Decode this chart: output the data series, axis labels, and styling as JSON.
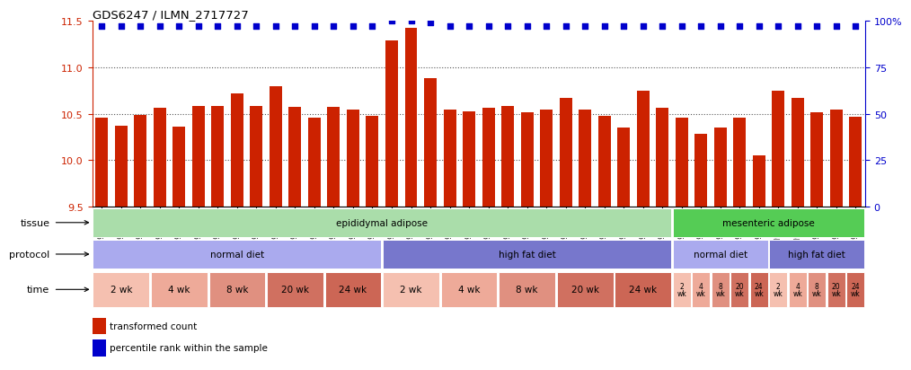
{
  "title": "GDS6247 / ILMN_2717727",
  "samples": [
    "GSM971546",
    "GSM971547",
    "GSM971548",
    "GSM971549",
    "GSM971550",
    "GSM971551",
    "GSM971552",
    "GSM971553",
    "GSM971554",
    "GSM971555",
    "GSM971556",
    "GSM971557",
    "GSM971558",
    "GSM971559",
    "GSM971560",
    "GSM971561",
    "GSM971562",
    "GSM971563",
    "GSM971564",
    "GSM971565",
    "GSM971566",
    "GSM971567",
    "GSM971568",
    "GSM971569",
    "GSM971570",
    "GSM971571",
    "GSM971572",
    "GSM971573",
    "GSM971574",
    "GSM971575",
    "GSM971576",
    "GSM971577",
    "GSM971578",
    "GSM971579",
    "GSM971580",
    "GSM971581",
    "GSM971582",
    "GSM971583",
    "GSM971584",
    "GSM971585"
  ],
  "bar_values": [
    10.46,
    10.37,
    10.49,
    10.56,
    10.36,
    10.58,
    10.58,
    10.72,
    10.58,
    10.8,
    10.57,
    10.46,
    10.57,
    10.55,
    10.48,
    11.29,
    11.42,
    10.88,
    10.55,
    10.53,
    10.56,
    10.58,
    10.52,
    10.55,
    10.67,
    10.55,
    10.48,
    10.35,
    10.75,
    10.56,
    10.46,
    10.28,
    10.35,
    10.46,
    10.05,
    10.75,
    10.67,
    10.52,
    10.55,
    10.47
  ],
  "percentile_values": [
    97,
    97,
    97,
    97,
    97,
    97,
    97,
    97,
    97,
    97,
    97,
    97,
    97,
    97,
    97,
    100,
    100,
    99,
    97,
    97,
    97,
    97,
    97,
    97,
    97,
    97,
    97,
    97,
    97,
    97,
    97,
    97,
    97,
    97,
    97,
    97,
    97,
    97,
    97,
    97
  ],
  "ylim_left": [
    9.5,
    11.5
  ],
  "ylim_right": [
    0,
    100
  ],
  "bar_color": "#cc2200",
  "dot_color": "#0000cc",
  "bg_color": "#ffffff",
  "left_yticks": [
    9.5,
    10.0,
    10.5,
    11.0,
    11.5
  ],
  "right_yticks": [
    0,
    25,
    50,
    75,
    100
  ],
  "right_yticklabels": [
    "0",
    "25",
    "50",
    "75",
    "100%"
  ],
  "tissue_groups": [
    {
      "label": "epididymal adipose",
      "start": 0,
      "end": 30,
      "color": "#aaddaa"
    },
    {
      "label": "mesenteric adipose",
      "start": 30,
      "end": 40,
      "color": "#55cc55"
    }
  ],
  "protocol_groups": [
    {
      "label": "normal diet",
      "start": 0,
      "end": 15,
      "color": "#aaaaee"
    },
    {
      "label": "high fat diet",
      "start": 15,
      "end": 30,
      "color": "#7777cc"
    },
    {
      "label": "normal diet",
      "start": 30,
      "end": 35,
      "color": "#aaaaee"
    },
    {
      "label": "high fat diet",
      "start": 35,
      "end": 40,
      "color": "#7777cc"
    }
  ],
  "time_groups": [
    {
      "label": "2 wk",
      "start": 0,
      "end": 3,
      "color": "#f5c0b0"
    },
    {
      "label": "4 wk",
      "start": 3,
      "end": 6,
      "color": "#eeaa99"
    },
    {
      "label": "8 wk",
      "start": 6,
      "end": 9,
      "color": "#e09080"
    },
    {
      "label": "20 wk",
      "start": 9,
      "end": 12,
      "color": "#d07060"
    },
    {
      "label": "24 wk",
      "start": 12,
      "end": 15,
      "color": "#cc6655"
    },
    {
      "label": "2 wk",
      "start": 15,
      "end": 18,
      "color": "#f5c0b0"
    },
    {
      "label": "4 wk",
      "start": 18,
      "end": 21,
      "color": "#eeaa99"
    },
    {
      "label": "8 wk",
      "start": 21,
      "end": 24,
      "color": "#e09080"
    },
    {
      "label": "20 wk",
      "start": 24,
      "end": 27,
      "color": "#d07060"
    },
    {
      "label": "24 wk",
      "start": 27,
      "end": 30,
      "color": "#cc6655"
    },
    {
      "label": "2\nwk",
      "start": 30,
      "end": 31,
      "color": "#f5c0b0"
    },
    {
      "label": "4\nwk",
      "start": 31,
      "end": 32,
      "color": "#eeaa99"
    },
    {
      "label": "8\nwk",
      "start": 32,
      "end": 33,
      "color": "#e09080"
    },
    {
      "label": "20\nwk",
      "start": 33,
      "end": 34,
      "color": "#d07060"
    },
    {
      "label": "24\nwk",
      "start": 34,
      "end": 35,
      "color": "#cc6655"
    },
    {
      "label": "2\nwk",
      "start": 35,
      "end": 36,
      "color": "#f5c0b0"
    },
    {
      "label": "4\nwk",
      "start": 36,
      "end": 37,
      "color": "#eeaa99"
    },
    {
      "label": "8\nwk",
      "start": 37,
      "end": 38,
      "color": "#e09080"
    },
    {
      "label": "20\nwk",
      "start": 38,
      "end": 39,
      "color": "#d07060"
    },
    {
      "label": "24\nwk",
      "start": 39,
      "end": 40,
      "color": "#cc6655"
    }
  ]
}
